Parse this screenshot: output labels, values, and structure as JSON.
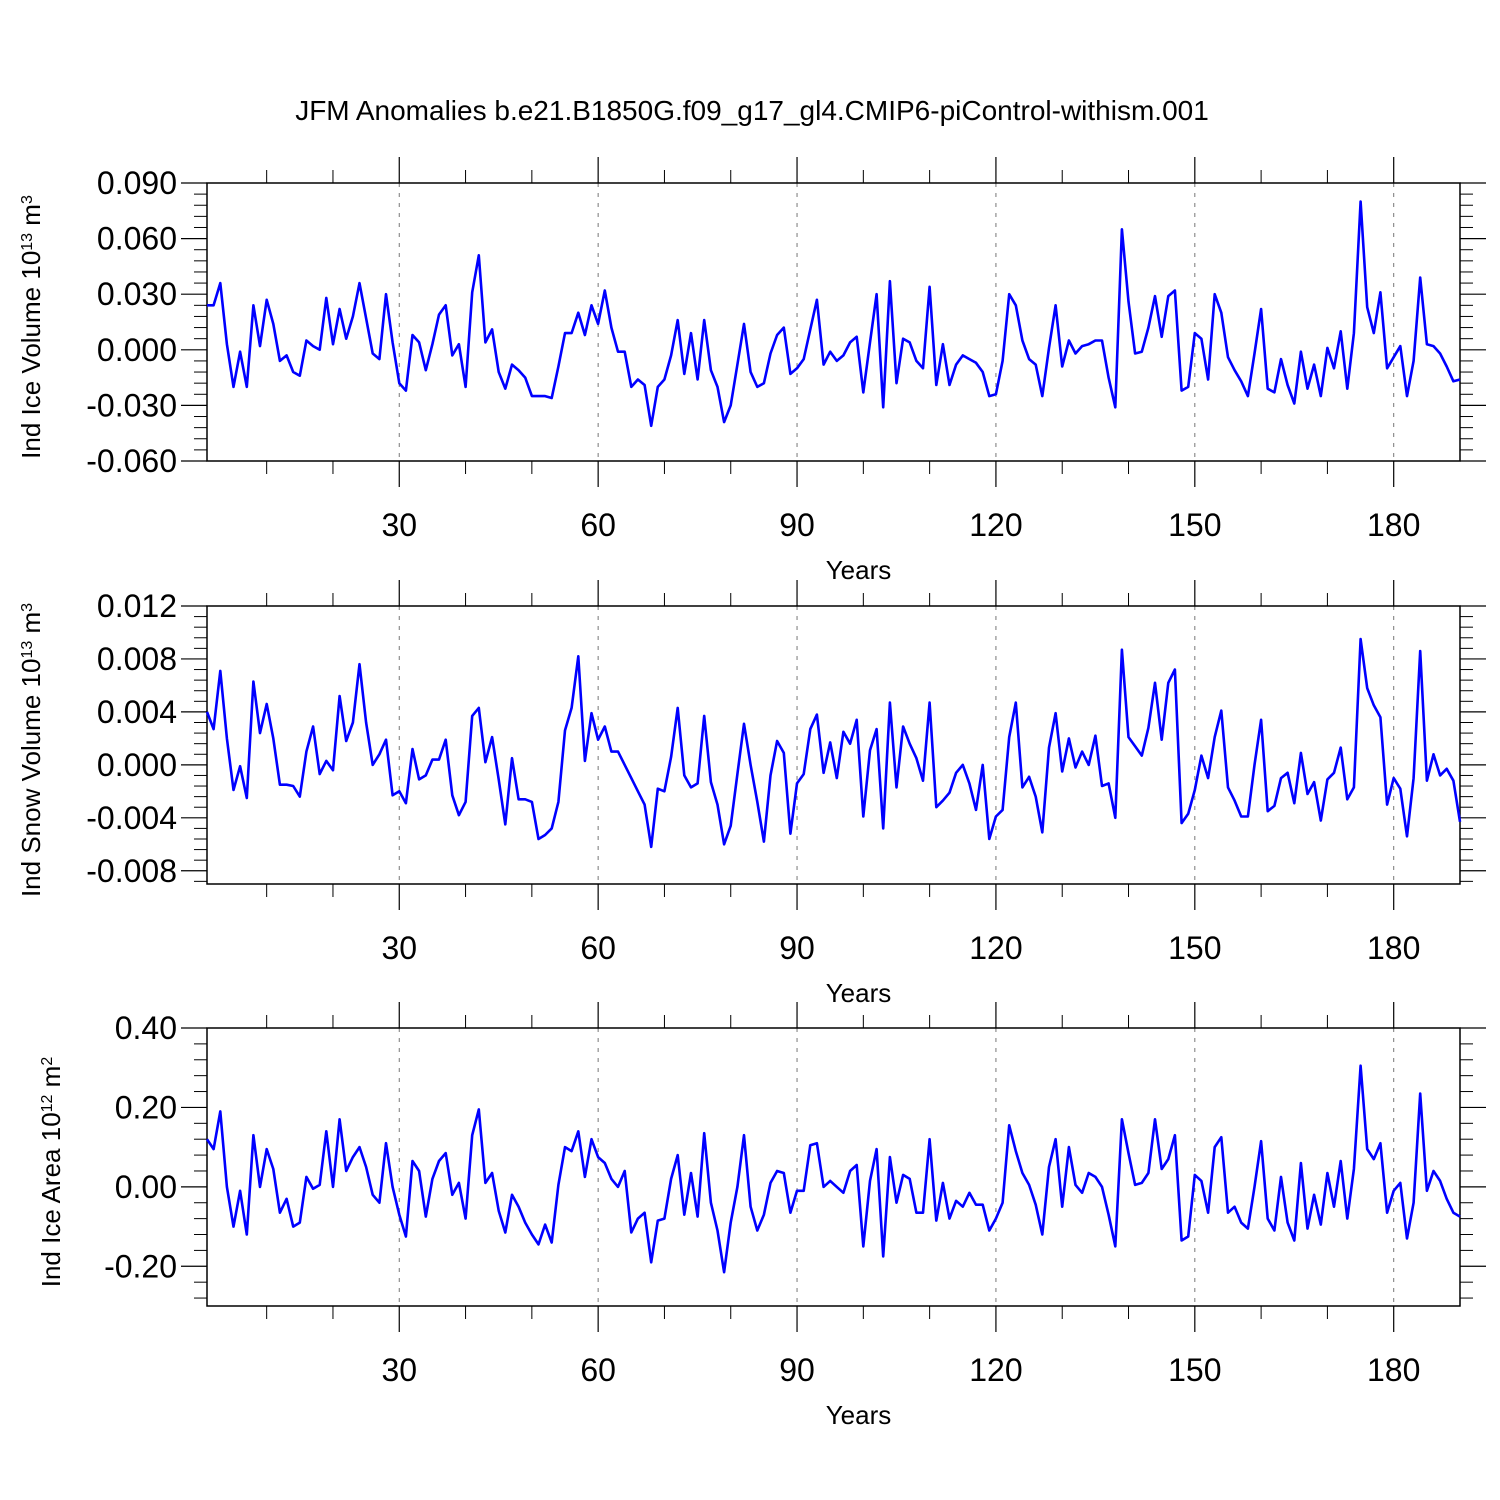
{
  "figure_title": "JFM Anomalies b.e21.B1850G.f09_g17_gl4.CMIP6-piControl-withism.001",
  "line_color": "#0000ff",
  "chart_data": [
    {
      "type": "line",
      "ylabel": "Ind Ice Volume 10",
      "ylabel_exp": "13",
      "ylabel_unit": " m",
      "ylabel_unit_exp": "3",
      "xlabel": "Years",
      "xlim": [
        1,
        190
      ],
      "ylim": [
        -0.06,
        0.09
      ],
      "yticks": [
        -0.06,
        -0.03,
        0.0,
        0.03,
        0.06,
        0.09
      ],
      "ytick_labels": [
        "-0.060",
        "-0.030",
        "0.000",
        "0.030",
        "0.060",
        "0.090"
      ],
      "xticks": [
        30,
        60,
        90,
        120,
        150,
        180
      ],
      "xtick_labels": [
        "30",
        "60",
        "90",
        "120",
        "150",
        "180"
      ],
      "x_start": 1,
      "values": [
        0.024,
        0.024,
        0.036,
        0.003,
        -0.02,
        -0.001,
        -0.02,
        0.024,
        0.002,
        0.027,
        0.014,
        -0.006,
        -0.003,
        -0.012,
        -0.014,
        0.005,
        0.002,
        0.0,
        0.028,
        0.003,
        0.022,
        0.006,
        0.018,
        0.036,
        0.017,
        -0.002,
        -0.005,
        0.03,
        0.004,
        -0.018,
        -0.022,
        0.008,
        0.004,
        -0.011,
        0.003,
        0.019,
        0.024,
        -0.003,
        0.003,
        -0.02,
        0.031,
        0.051,
        0.004,
        0.011,
        -0.012,
        -0.021,
        -0.008,
        -0.011,
        -0.015,
        -0.025,
        -0.025,
        -0.025,
        -0.026,
        -0.009,
        0.009,
        0.009,
        0.02,
        0.008,
        0.024,
        0.014,
        0.032,
        0.012,
        -0.001,
        -0.001,
        -0.02,
        -0.016,
        -0.019,
        -0.041,
        -0.02,
        -0.016,
        -0.003,
        0.016,
        -0.013,
        0.009,
        -0.016,
        0.016,
        -0.011,
        -0.02,
        -0.039,
        -0.03,
        -0.008,
        0.014,
        -0.012,
        -0.02,
        -0.018,
        -0.002,
        0.008,
        0.012,
        -0.013,
        -0.01,
        -0.005,
        0.011,
        0.027,
        -0.008,
        -0.001,
        -0.006,
        -0.003,
        0.004,
        0.007,
        -0.023,
        0.004,
        0.03,
        -0.031,
        0.037,
        -0.018,
        0.006,
        0.004,
        -0.006,
        -0.01,
        0.034,
        -0.019,
        0.003,
        -0.019,
        -0.008,
        -0.003,
        -0.005,
        -0.007,
        -0.012,
        -0.025,
        -0.024,
        -0.006,
        0.03,
        0.024,
        0.005,
        -0.005,
        -0.008,
        -0.025,
        0.001,
        0.024,
        -0.009,
        0.005,
        -0.002,
        0.002,
        0.003,
        0.005,
        0.005,
        -0.015,
        -0.031,
        0.065,
        0.026,
        -0.002,
        -0.001,
        0.012,
        0.029,
        0.007,
        0.029,
        0.032,
        -0.022,
        -0.02,
        0.009,
        0.006,
        -0.016,
        0.03,
        0.02,
        -0.004,
        -0.011,
        -0.017,
        -0.025,
        -0.002,
        0.022,
        -0.021,
        -0.023,
        -0.005,
        -0.019,
        -0.029,
        -0.001,
        -0.021,
        -0.008,
        -0.025,
        0.001,
        -0.01,
        0.01,
        -0.021,
        0.009,
        0.08,
        0.023,
        0.009,
        0.031,
        -0.01,
        -0.004,
        0.002,
        -0.025,
        -0.006,
        0.039,
        0.003,
        0.002,
        -0.002,
        -0.009,
        -0.017,
        -0.016
      ]
    },
    {
      "type": "line",
      "ylabel": "Ind Snow Volume 10",
      "ylabel_exp": "13",
      "ylabel_unit": " m",
      "ylabel_unit_exp": "3",
      "xlabel": "Years",
      "xlim": [
        1,
        190
      ],
      "ylim": [
        -0.009,
        0.012
      ],
      "yticks": [
        -0.008,
        -0.004,
        0.0,
        0.004,
        0.008,
        0.012
      ],
      "ytick_labels": [
        "-0.008",
        "-0.004",
        "0.000",
        "0.004",
        "0.008",
        "0.012"
      ],
      "xticks": [
        30,
        60,
        90,
        120,
        150,
        180
      ],
      "xtick_labels": [
        "30",
        "60",
        "90",
        "120",
        "150",
        "180"
      ],
      "x_start": 1,
      "values": [
        0.004,
        0.0027,
        0.0071,
        0.002,
        -0.0019,
        -0.0001,
        -0.0025,
        0.0063,
        0.0024,
        0.0046,
        0.002,
        -0.0015,
        -0.0015,
        -0.0016,
        -0.0024,
        0.001,
        0.0029,
        -0.0007,
        0.0003,
        -0.0004,
        0.0052,
        0.0018,
        0.0032,
        0.0076,
        0.0032,
        0.0,
        0.0008,
        0.0019,
        -0.0023,
        -0.002,
        -0.0029,
        0.0012,
        -0.0011,
        -0.0008,
        0.0004,
        0.0004,
        0.0019,
        -0.0023,
        -0.0038,
        -0.0028,
        0.0037,
        0.0043,
        0.0002,
        0.0021,
        -0.0011,
        -0.0045,
        0.0005,
        -0.0026,
        -0.0026,
        -0.0028,
        -0.0056,
        -0.0053,
        -0.0048,
        -0.0028,
        0.0026,
        0.0043,
        0.0082,
        0.0003,
        0.0039,
        0.0019,
        0.0029,
        0.001,
        0.001,
        0.0,
        -0.001,
        -0.002,
        -0.003,
        -0.0062,
        -0.0018,
        -0.002,
        0.0006,
        0.0043,
        -0.0008,
        -0.0017,
        -0.0014,
        0.0037,
        -0.0013,
        -0.003,
        -0.006,
        -0.0046,
        -0.0007,
        0.0031,
        0.0,
        -0.0028,
        -0.0058,
        -0.0008,
        0.0018,
        0.0009,
        -0.0052,
        -0.0014,
        -0.0007,
        0.0027,
        0.0038,
        -0.0006,
        0.0017,
        -0.001,
        0.0025,
        0.0016,
        0.0034,
        -0.0039,
        0.0011,
        0.0027,
        -0.0048,
        0.0047,
        -0.0017,
        0.0029,
        0.0016,
        0.0005,
        -0.0012,
        0.0047,
        -0.0032,
        -0.0027,
        -0.0021,
        -0.0006,
        0.0,
        -0.0014,
        -0.0034,
        0.0,
        -0.0056,
        -0.0039,
        -0.0034,
        0.0021,
        0.0047,
        -0.0017,
        -0.0009,
        -0.0024,
        -0.0051,
        0.0013,
        0.0039,
        -0.0005,
        0.002,
        -0.0002,
        0.001,
        0.0,
        0.0022,
        -0.0016,
        -0.0014,
        -0.004,
        0.0087,
        0.0021,
        0.0014,
        0.0007,
        0.0028,
        0.0062,
        0.0019,
        0.0062,
        0.0072,
        -0.0044,
        -0.0037,
        -0.0019,
        0.0007,
        -0.001,
        0.0021,
        0.0041,
        -0.0017,
        -0.0027,
        -0.0039,
        -0.0039,
        0.0,
        0.0034,
        -0.0035,
        -0.0031,
        -0.001,
        -0.0006,
        -0.0029,
        0.0009,
        -0.0022,
        -0.0013,
        -0.0042,
        -0.0011,
        -0.0006,
        0.0013,
        -0.0026,
        -0.0017,
        0.0095,
        0.0058,
        0.0045,
        0.0036,
        -0.003,
        -0.001,
        -0.0018,
        -0.0054,
        -0.001,
        0.0086,
        -0.0012,
        0.0008,
        -0.0008,
        -0.0003,
        -0.0012,
        -0.0043
      ]
    },
    {
      "type": "line",
      "ylabel": "Ind Ice Area 10",
      "ylabel_exp": "12",
      "ylabel_unit": " m",
      "ylabel_unit_exp": "2",
      "xlabel": "Years",
      "xlim": [
        1,
        190
      ],
      "ylim": [
        -0.3,
        0.4
      ],
      "yticks": [
        -0.2,
        0.0,
        0.2,
        0.4
      ],
      "ytick_labels": [
        "-0.20",
        "0.00",
        "0.20",
        "0.40"
      ],
      "xticks": [
        30,
        60,
        90,
        120,
        150,
        180
      ],
      "xtick_labels": [
        "30",
        "60",
        "90",
        "120",
        "150",
        "180"
      ],
      "x_start": 1,
      "values": [
        0.12,
        0.095,
        0.19,
        0.0,
        -0.1,
        -0.01,
        -0.12,
        0.13,
        0.0,
        0.095,
        0.045,
        -0.065,
        -0.03,
        -0.1,
        -0.09,
        0.025,
        -0.005,
        0.005,
        0.14,
        0.0,
        0.17,
        0.04,
        0.075,
        0.1,
        0.05,
        -0.02,
        -0.04,
        0.11,
        0.0,
        -0.07,
        -0.125,
        0.065,
        0.04,
        -0.075,
        0.02,
        0.065,
        0.085,
        -0.02,
        0.01,
        -0.08,
        0.13,
        0.195,
        0.01,
        0.035,
        -0.06,
        -0.115,
        -0.02,
        -0.05,
        -0.09,
        -0.12,
        -0.145,
        -0.095,
        -0.14,
        0.005,
        0.1,
        0.09,
        0.14,
        0.025,
        0.12,
        0.075,
        0.06,
        0.02,
        0.0,
        0.04,
        -0.115,
        -0.08,
        -0.065,
        -0.19,
        -0.085,
        -0.08,
        0.02,
        0.08,
        -0.07,
        0.035,
        -0.075,
        0.135,
        -0.04,
        -0.11,
        -0.215,
        -0.09,
        0.0,
        0.13,
        -0.05,
        -0.11,
        -0.07,
        0.01,
        0.04,
        0.035,
        -0.065,
        -0.01,
        -0.01,
        0.105,
        0.11,
        0.0,
        0.015,
        0.0,
        -0.015,
        0.04,
        0.055,
        -0.15,
        0.015,
        0.095,
        -0.175,
        0.075,
        -0.04,
        0.03,
        0.02,
        -0.065,
        -0.065,
        0.12,
        -0.085,
        0.01,
        -0.08,
        -0.035,
        -0.05,
        -0.015,
        -0.045,
        -0.045,
        -0.11,
        -0.08,
        -0.04,
        0.155,
        0.09,
        0.035,
        0.005,
        -0.045,
        -0.12,
        0.05,
        0.12,
        -0.05,
        0.1,
        0.005,
        -0.015,
        0.035,
        0.025,
        0.0,
        -0.07,
        -0.15,
        0.17,
        0.085,
        0.005,
        0.01,
        0.035,
        0.17,
        0.045,
        0.07,
        0.13,
        -0.135,
        -0.125,
        0.03,
        0.015,
        -0.065,
        0.1,
        0.125,
        -0.065,
        -0.05,
        -0.09,
        -0.105,
        0.0,
        0.115,
        -0.08,
        -0.11,
        0.025,
        -0.09,
        -0.135,
        0.06,
        -0.105,
        -0.02,
        -0.095,
        0.035,
        -0.05,
        0.065,
        -0.08,
        0.045,
        0.305,
        0.095,
        0.07,
        0.11,
        -0.065,
        -0.01,
        0.01,
        -0.13,
        -0.04,
        0.235,
        -0.01,
        0.04,
        0.015,
        -0.03,
        -0.065,
        -0.075
      ]
    }
  ]
}
